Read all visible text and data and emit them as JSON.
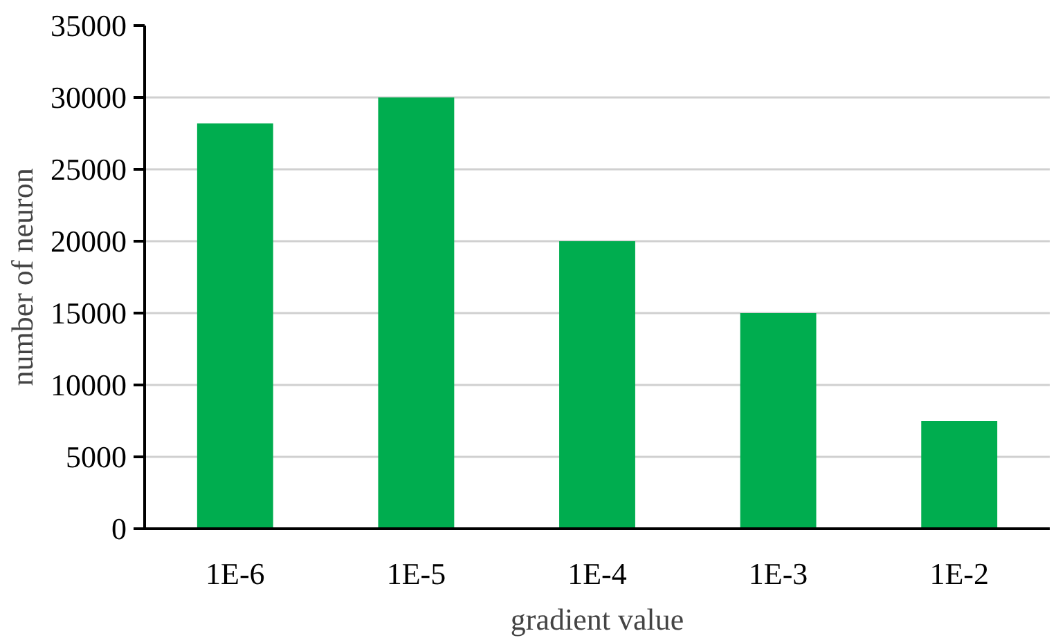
{
  "chart_data": {
    "type": "bar",
    "xlabel": "gradient value",
    "ylabel": "number of neuron",
    "categories": [
      "1E-6",
      "1E-5",
      "1E-4",
      "1E-3",
      "1E-2"
    ],
    "values": [
      28200,
      30000,
      20000,
      15000,
      7500
    ],
    "color": "#00ad4f",
    "ylim": [
      0,
      35000
    ],
    "yticks": [
      0,
      5000,
      10000,
      15000,
      20000,
      25000,
      30000,
      35000
    ],
    "grid": "y"
  }
}
